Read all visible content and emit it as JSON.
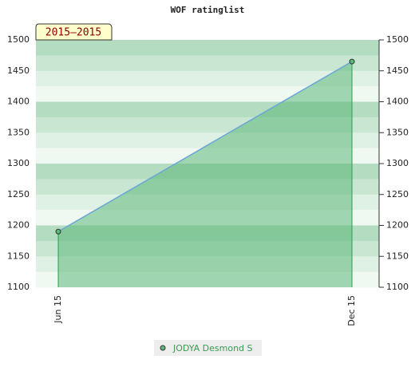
{
  "chart_data": {
    "type": "area",
    "title": "WOF ratinglist",
    "period_label": "2015–2015",
    "categories": [
      "Jun 15",
      "Dec 15"
    ],
    "series": [
      {
        "name": "JODYA Desmond S",
        "color": "#5cb87a",
        "line_color": "#6aa6d6",
        "values": [
          1190,
          1465
        ]
      }
    ],
    "ylim": [
      1100,
      1500
    ],
    "yticks": [
      1100,
      1150,
      1200,
      1250,
      1300,
      1350,
      1400,
      1450,
      1500
    ],
    "y2lim": [
      1100,
      1500
    ],
    "y2ticks": [
      1100,
      1150,
      1200,
      1250,
      1300,
      1350,
      1400,
      1450,
      1500
    ]
  }
}
